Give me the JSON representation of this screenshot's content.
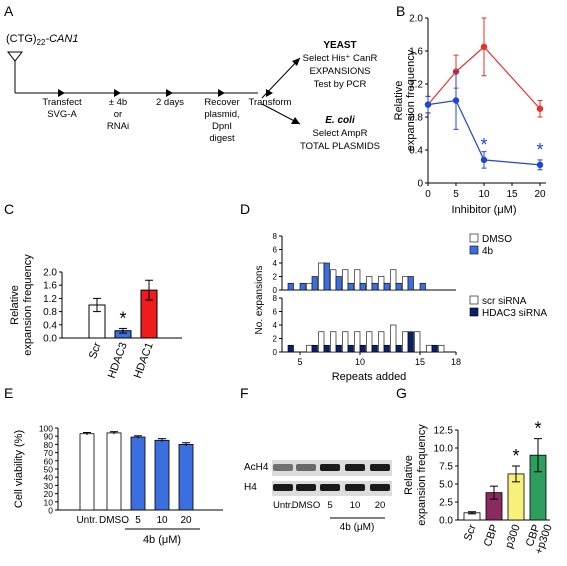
{
  "panels": {
    "A": "A",
    "B": "B",
    "C": "C",
    "D": "D",
    "E": "E",
    "F": "F",
    "G": "G"
  },
  "schematic": {
    "construct_prefix": "(CTG)",
    "construct_sub": "22",
    "construct_gene": "-CAN1",
    "steps": [
      {
        "lines": [
          "Transfect",
          "SVG-A"
        ]
      },
      {
        "lines": [
          "± 4b",
          "or",
          "RNAi"
        ]
      },
      {
        "lines": [
          "2 days"
        ]
      },
      {
        "lines": [
          "Recover",
          "plasmid,",
          "DpnI",
          "digest"
        ]
      },
      {
        "lines": [
          "Transform"
        ]
      }
    ],
    "yeast_title": "YEAST",
    "yeast_lines": [
      "Select His⁺ CanR",
      "EXPANSIONS",
      "Test by PCR"
    ],
    "ecoli_title": "E. coli",
    "ecoli_lines": [
      "Select AmpR",
      "TOTAL PLASMIDS"
    ]
  },
  "chart_data": [
    {
      "panel": "B",
      "type": "line",
      "xlabel": "Inhibitor (μM)",
      "ylabel": "Relative expansion frequency",
      "ylim": [
        0,
        2.0
      ],
      "xlim": [
        0,
        20
      ],
      "yticks": [
        "0",
        "0.4",
        "0.8",
        "1.2",
        "1.6",
        "2.0"
      ],
      "xticks": [
        "0",
        "5",
        "10",
        "15",
        "20"
      ],
      "series": [
        {
          "color": "#e8302a",
          "x": [
            0,
            5,
            10,
            20
          ],
          "y": [
            0.95,
            1.35,
            1.65,
            0.9
          ],
          "err": [
            0.1,
            0.2,
            0.35,
            0.1
          ]
        },
        {
          "color": "#1f45d6",
          "x": [
            0,
            5,
            10,
            20
          ],
          "y": [
            0.95,
            1.0,
            0.28,
            0.22
          ],
          "err": [
            0.1,
            0.35,
            0.1,
            0.06
          ]
        }
      ],
      "stars": [
        {
          "x": 10,
          "y": 0.28
        },
        {
          "x": 20,
          "y": 0.22
        }
      ]
    },
    {
      "panel": "C",
      "type": "bar",
      "categories": [
        "Scr",
        "HDAC3",
        "HDAC1"
      ],
      "values": [
        1.0,
        0.22,
        1.45
      ],
      "err": [
        0.2,
        0.07,
        0.3
      ],
      "colors": [
        "#ffffff",
        "#3b6fe0",
        "#ee1c1c"
      ],
      "ylabel": "Relative expansion frequency",
      "ylim": [
        0,
        2.0
      ],
      "yticks": [
        "0.0",
        "0.4",
        "0.8",
        "1.2",
        "1.6",
        "2.0"
      ],
      "stars": [
        "HDAC3"
      ]
    },
    {
      "panel": "D",
      "type": "bar",
      "xlabel": "Repeats added",
      "ylabel": "No. expansions",
      "xticks": [
        "5",
        "10",
        "15",
        "18"
      ],
      "top": {
        "ylim": [
          0,
          4
        ],
        "yticks": [
          "0",
          "2",
          "4",
          "6",
          "8"
        ],
        "legend": [
          "DMSO",
          "4b"
        ],
        "repeats": [
          4,
          5,
          6,
          7,
          8,
          9,
          10,
          11,
          12,
          13,
          14,
          15,
          16
        ],
        "series": [
          {
            "name": "DMSO",
            "color": "#ffffff",
            "values": [
              0,
              0,
              1,
              4,
              3,
              3,
              3,
              2,
              2,
              3,
              2,
              0,
              0
            ]
          },
          {
            "name": "4b",
            "color": "#3b6fe0",
            "values": [
              1,
              1,
              2,
              4,
              2,
              1,
              1,
              1,
              1,
              1,
              2,
              1,
              0
            ]
          }
        ]
      },
      "bottom": {
        "ylim": [
          0,
          4
        ],
        "yticks": [
          "0",
          "2",
          "4",
          "6",
          "8"
        ],
        "legend": [
          "scr siRNA",
          "HDAC3 siRNA"
        ],
        "repeats": [
          4,
          5,
          6,
          7,
          8,
          9,
          10,
          11,
          12,
          13,
          14,
          15,
          16,
          17
        ],
        "series": [
          {
            "name": "scr siRNA",
            "color": "#ffffff",
            "values": [
              0,
              0,
              1,
              3,
              3,
              3,
              3,
              3,
              3,
              4,
              3,
              3,
              1,
              1
            ]
          },
          {
            "name": "HDAC3 siRNA",
            "color": "#0c1f6b",
            "values": [
              1,
              0,
              1,
              1,
              1,
              1,
              1,
              1,
              1,
              1,
              3,
              0,
              1,
              0
            ]
          }
        ]
      }
    },
    {
      "panel": "E",
      "type": "bar",
      "categories": [
        "Untr.",
        "DMSO",
        "5",
        "10",
        "20"
      ],
      "values": [
        93,
        94,
        89,
        85,
        80
      ],
      "err": [
        1.5,
        1.5,
        1.5,
        2,
        2
      ],
      "colors": [
        "#ffffff",
        "#ffffff",
        "#3b6fe0",
        "#3b6fe0",
        "#3b6fe0"
      ],
      "ylabel": "Cell viability (%)",
      "ylim": [
        0,
        100
      ],
      "yticks": [
        "0",
        "10",
        "20",
        "30",
        "40",
        "50",
        "60",
        "70",
        "80",
        "90",
        "100"
      ],
      "group_label": "4b (μM)"
    },
    {
      "panel": "G",
      "type": "bar",
      "categories": [
        "Scr",
        "CBP",
        "p300",
        "CBP +p300"
      ],
      "values": [
        1.0,
        3.8,
        6.4,
        9.0
      ],
      "err": [
        0.15,
        0.9,
        1.1,
        2.3
      ],
      "colors": [
        "#ffffff",
        "#8b2a5e",
        "#f7f07a",
        "#2e9e5f"
      ],
      "ylabel": "Relative expansion frequency",
      "ylim": [
        0,
        12.5
      ],
      "yticks": [
        "0.0",
        "2.5",
        "5.0",
        "7.5",
        "10.0",
        "12.5"
      ],
      "stars": [
        "p300",
        "CBP +p300"
      ]
    }
  ],
  "blot": {
    "rows": [
      "AcH4",
      "H4"
    ],
    "lanes": [
      "Untr.",
      "DMSO",
      "5",
      "10",
      "20"
    ],
    "group_label": "4b (μM)"
  }
}
